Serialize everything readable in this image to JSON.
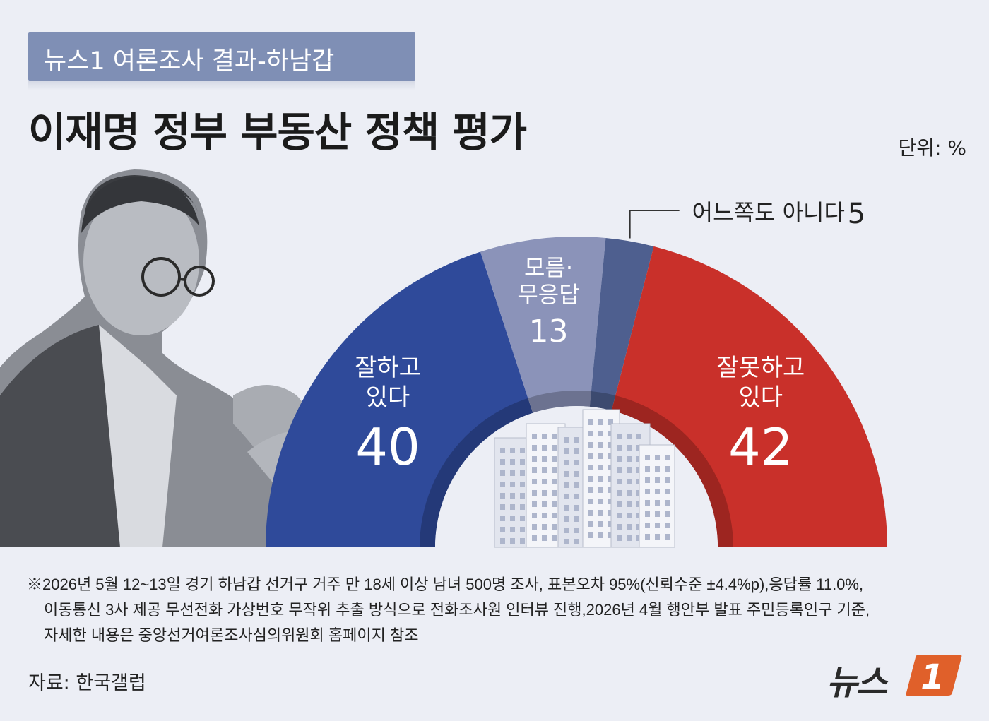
{
  "header": {
    "banner": "뉴스1 여론조사 결과-하남갑",
    "title": "이재명 정부 부동산 정책 평가",
    "unit": "단위: %"
  },
  "chart_data": {
    "type": "pie",
    "subtype": "half-donut",
    "unit": "%",
    "slices": [
      {
        "label_lines": [
          "잘하고",
          "있다"
        ],
        "value": 40,
        "color": "#2f4a9a"
      },
      {
        "label_lines": [
          "모름·",
          "무응답"
        ],
        "value": 13,
        "color": "#8b93b9"
      },
      {
        "label_lines": [
          "어느쪽도 아니다"
        ],
        "value": 5,
        "color": "#4e5f8f"
      },
      {
        "label_lines": [
          "잘못하고",
          "있다"
        ],
        "value": 42,
        "color": "#c9302a"
      }
    ]
  },
  "notes": [
    "※2026년 5월 12~13일 경기 하남갑 선거구 거주 만 18세 이상 남녀 500명 조사, 표본오차 95%(신뢰수준 ±4.4%p),응답률 11.0%,",
    "이동통신 3사 제공 무선전화 가상번호 무작위 추출 방식으로 전화조사원 인터뷰 진행,2026년 4월 행안부 발표 주민등록인구 기준,",
    "자세한 내용은 중앙선거여론조사심의위원회 홈페이지 참조"
  ],
  "source": "자료: 한국갤럽",
  "logo": {
    "text": "뉴스",
    "badge": "1",
    "badge_color": "#e0602a"
  }
}
